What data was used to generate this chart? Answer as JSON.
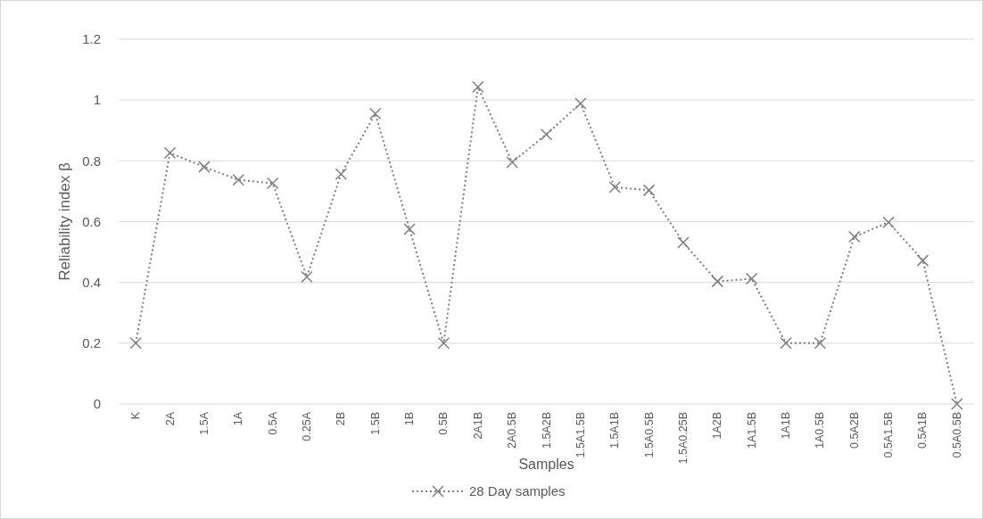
{
  "chart_data": {
    "type": "line",
    "xlabel": "Samples",
    "ylabel": "Reliability index β",
    "categories": [
      "K",
      "2A",
      "1.5A",
      "1A",
      "0.5A",
      "0.25A",
      "2B",
      "1.5B",
      "1B",
      "0.5B",
      "2A1B",
      "2A0.5B",
      "1.5A2B",
      "1.5A1.5B",
      "1.5A1B",
      "1.5A0.5B",
      "1.5A0.25B",
      "1A2B",
      "1A1.5B",
      "1A1B",
      "1A0.5B",
      "0.5A2B",
      "0.5A1.5B",
      "0.5A1B",
      "0.5A0.5B"
    ],
    "series": [
      {
        "name": "28 Day samples",
        "color": "#7f7f7f",
        "values": [
          0.2,
          0.826,
          0.78,
          0.737,
          0.726,
          0.418,
          0.756,
          0.955,
          0.575,
          0.2,
          1.043,
          0.795,
          0.887,
          0.989,
          0.713,
          0.703,
          0.531,
          0.403,
          0.412,
          0.2,
          0.2,
          0.55,
          0.598,
          0.472,
          0
        ]
      }
    ],
    "ylim": [
      0,
      1.2
    ],
    "yticks": [
      0,
      0.2,
      0.4,
      0.6,
      0.8,
      1,
      1.2
    ],
    "grid": "y",
    "legend": "bottom",
    "marker": "cross",
    "line_style": "dotted"
  }
}
